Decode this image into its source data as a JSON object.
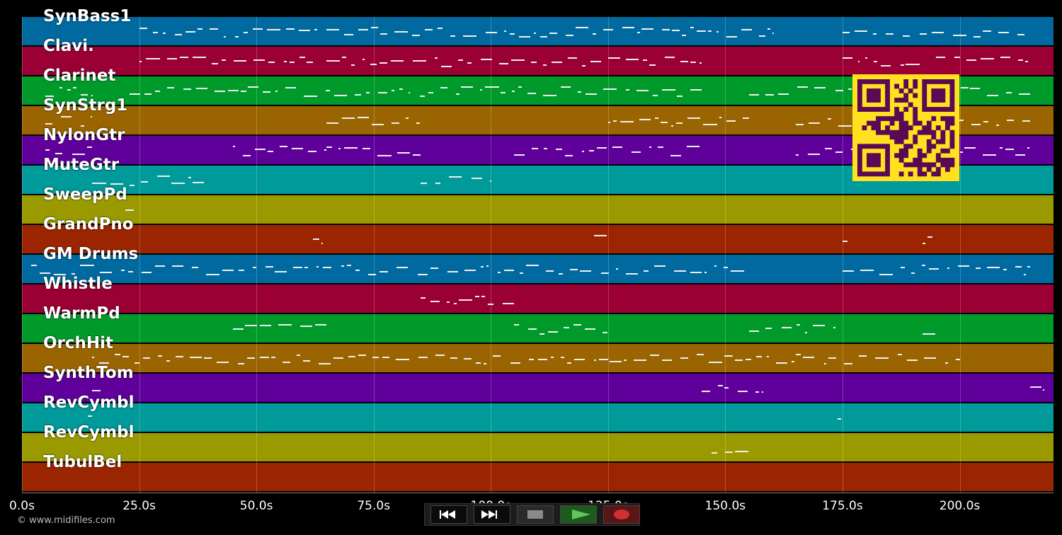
{
  "tracks": [
    {
      "name": "SynBass1",
      "color": "#006aa0"
    },
    {
      "name": "Clavi.",
      "color": "#9a0033"
    },
    {
      "name": "Clarinet",
      "color": "#009a2b"
    },
    {
      "name": "SynStrg1",
      "color": "#9a6400"
    },
    {
      "name": "NylonGtr",
      "color": "#5f009a"
    },
    {
      "name": "MuteGtr",
      "color": "#009a9a"
    },
    {
      "name": "SweepPd",
      "color": "#9a9a00"
    },
    {
      "name": "GrandPno",
      "color": "#9a2500"
    },
    {
      "name": "GM Drums",
      "color": "#006aa0"
    },
    {
      "name": "Whistle",
      "color": "#9a0033"
    },
    {
      "name": "WarmPd",
      "color": "#009a2b"
    },
    {
      "name": "OrchHit",
      "color": "#9a6400"
    },
    {
      "name": "SynthTom",
      "color": "#5f009a"
    },
    {
      "name": "RevCymbl",
      "color": "#009a9a"
    },
    {
      "name": "RevCymbl",
      "color": "#9a9a00"
    },
    {
      "name": "TubulBel",
      "color": "#9a2500"
    }
  ],
  "time_axis": {
    "max_seconds": 220,
    "ticks": [
      "0.0s",
      "25.0s",
      "50.0s",
      "75.0s",
      "100.0s",
      "125.0s",
      "150.0s",
      "175.0s",
      "200.0s"
    ],
    "tick_values": [
      0,
      25,
      50,
      75,
      100,
      125,
      150,
      175,
      200
    ]
  },
  "footer": {
    "copyright": "© www.midifiles.com"
  },
  "transport": {
    "rewind_icon": "rewind-icon",
    "fast_forward_icon": "fast-forward-icon",
    "stop_icon": "stop-icon",
    "play_icon": "play-icon",
    "record_icon": "record-icon"
  },
  "qr_code": {
    "color_fg": "#5a0a55",
    "color_bg": "#ffe11f"
  }
}
